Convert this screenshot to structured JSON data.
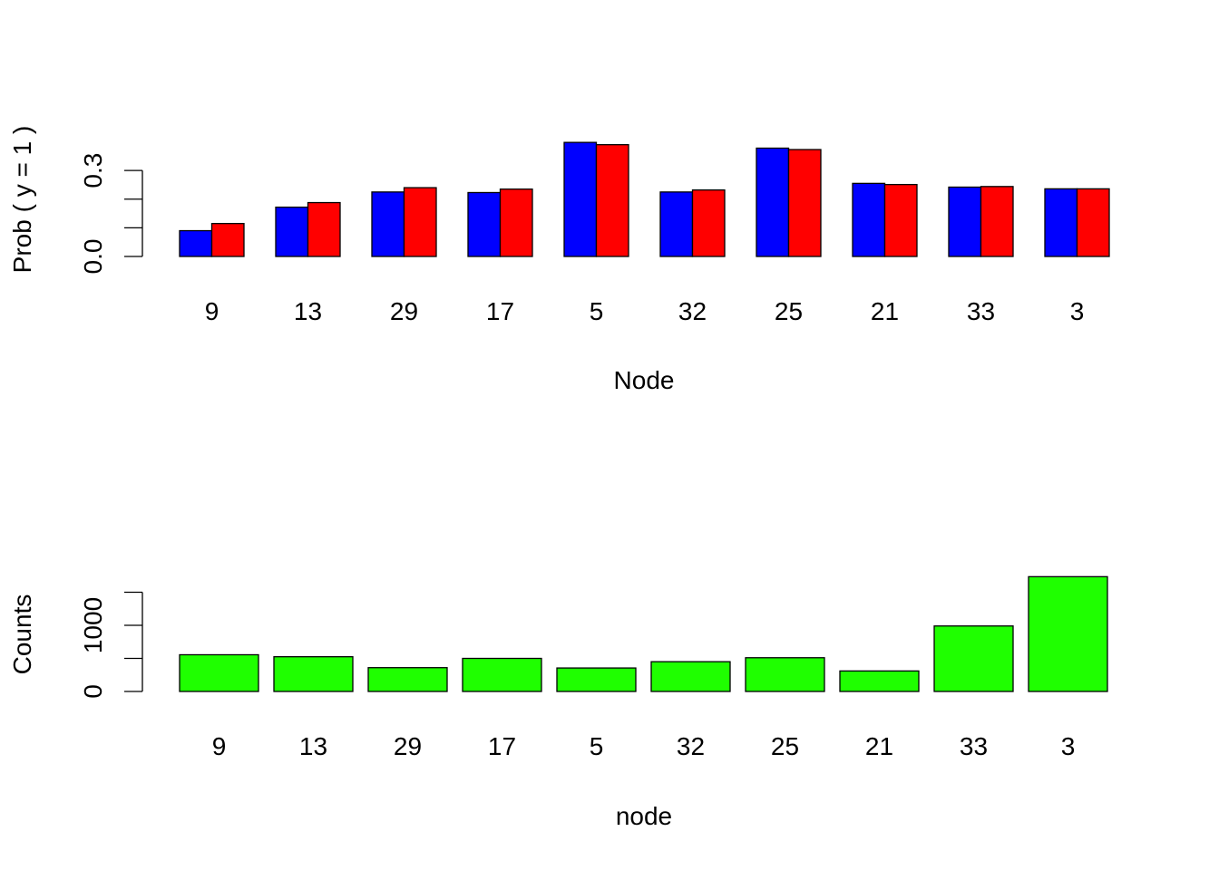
{
  "colors": {
    "series_1": "#0000ff",
    "series_2": "#ff0000",
    "counts": "#1fff00",
    "stroke": "#000000",
    "background": "#ffffff"
  },
  "chart_data": [
    {
      "type": "bar",
      "layout": "grouped",
      "title": "",
      "xlabel": "Node",
      "ylabel": "Prob ( y = 1 )",
      "categories": [
        "9",
        "13",
        "29",
        "17",
        "5",
        "32",
        "25",
        "21",
        "33",
        "3"
      ],
      "series": [
        {
          "color": "#0000ff",
          "values": [
            0.09,
            0.172,
            0.225,
            0.223,
            0.398,
            0.225,
            0.378,
            0.255,
            0.242,
            0.236
          ]
        },
        {
          "color": "#ff0000",
          "values": [
            0.115,
            0.188,
            0.24,
            0.235,
            0.39,
            0.232,
            0.373,
            0.251,
            0.244,
            0.236
          ]
        }
      ],
      "yticks": [
        0.0,
        0.1,
        0.2,
        0.3
      ],
      "yticklabels": [
        "0.0",
        "",
        "",
        "0.3"
      ],
      "ylim": [
        0,
        0.4
      ],
      "grid": false,
      "legend": "none"
    },
    {
      "type": "bar",
      "title": "",
      "xlabel": "node",
      "ylabel": "Counts",
      "categories": [
        "9",
        "13",
        "29",
        "17",
        "5",
        "32",
        "25",
        "21",
        "33",
        "3"
      ],
      "values": [
        555,
        525,
        360,
        500,
        355,
        450,
        510,
        310,
        990,
        1735
      ],
      "color": "#1fff00",
      "yticks": [
        0,
        500,
        1000,
        1500
      ],
      "yticklabels": [
        "0",
        "",
        "1000",
        ""
      ],
      "ylim": [
        0,
        1800
      ],
      "grid": false,
      "legend": "none"
    }
  ]
}
